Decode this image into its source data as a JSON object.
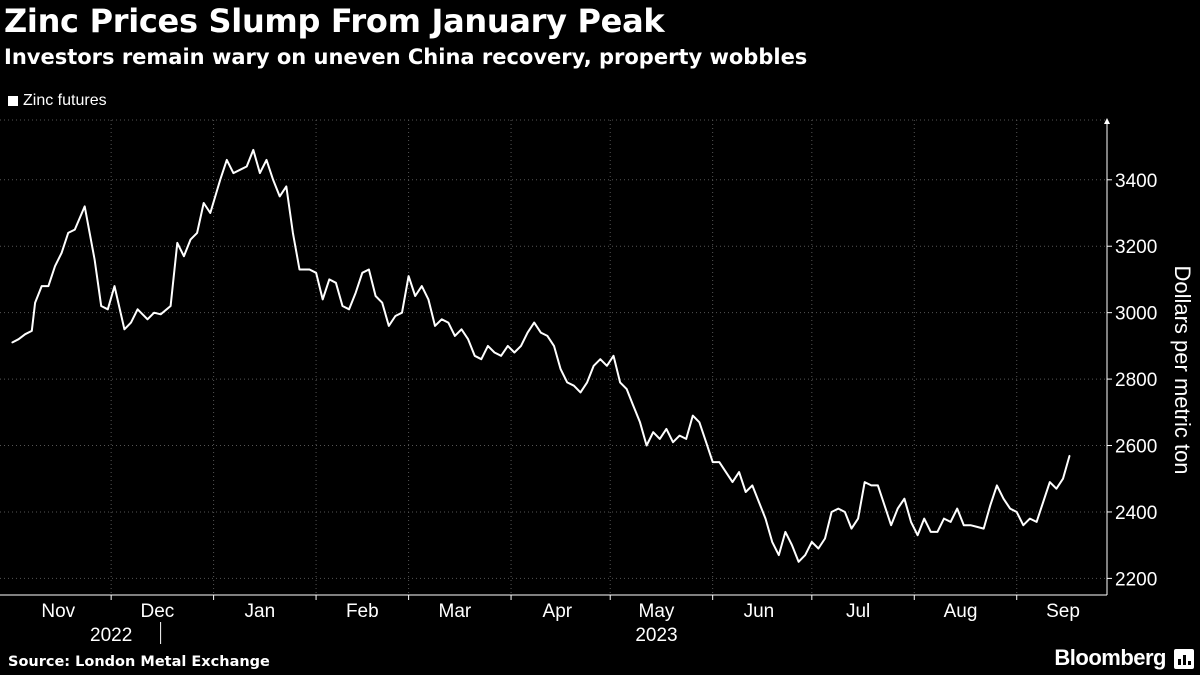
{
  "header": {
    "title": "Zinc Prices Slump From January Peak",
    "subtitle": "Investors remain wary on uneven China recovery, property wobbles"
  },
  "footer": {
    "source": "Source: London Metal Exchange",
    "brand": "Bloomberg"
  },
  "colors": {
    "background": "#000000",
    "line": "#ffffff",
    "grid": "#555555"
  },
  "chart_data": {
    "type": "line",
    "title": "Zinc Prices Slump From January Peak",
    "subtitle": "Investors remain wary on uneven China recovery, property wobbles",
    "ylabel": "Dollars per metric ton",
    "xlabel": "",
    "ylim": [
      2150,
      3580
    ],
    "y_ticks": [
      2200,
      2400,
      2600,
      2800,
      3000,
      3200,
      3400
    ],
    "y_axis_side": "right",
    "grid": true,
    "legend_position": "top-left",
    "x_range": [
      "2022-11-01",
      "2023-09-15"
    ],
    "x_ticks": [
      {
        "label": "Nov",
        "date": "2022-11-15"
      },
      {
        "label": "Dec",
        "date": "2022-12-15"
      },
      {
        "label": "Jan",
        "date": "2023-01-15"
      },
      {
        "label": "Feb",
        "date": "2023-02-15"
      },
      {
        "label": "Mar",
        "date": "2023-03-15"
      },
      {
        "label": "Apr",
        "date": "2023-04-15"
      },
      {
        "label": "May",
        "date": "2023-05-15"
      },
      {
        "label": "Jun",
        "date": "2023-06-15"
      },
      {
        "label": "Jul",
        "date": "2023-07-15"
      },
      {
        "label": "Aug",
        "date": "2023-08-15"
      },
      {
        "label": "Sep",
        "date": "2023-09-15"
      }
    ],
    "year_labels": [
      {
        "label": "2022",
        "date": "2022-12-01"
      },
      {
        "label": "2023",
        "date": "2023-05-15"
      }
    ],
    "series": [
      {
        "name": "Zinc futures",
        "points": [
          [
            "2022-11-01",
            2910
          ],
          [
            "2022-11-03",
            2920
          ],
          [
            "2022-11-05",
            2935
          ],
          [
            "2022-11-07",
            2945
          ],
          [
            "2022-11-08",
            3030
          ],
          [
            "2022-11-10",
            3080
          ],
          [
            "2022-11-12",
            3080
          ],
          [
            "2022-11-14",
            3140
          ],
          [
            "2022-11-16",
            3180
          ],
          [
            "2022-11-18",
            3240
          ],
          [
            "2022-11-20",
            3250
          ],
          [
            "2022-11-23",
            3320
          ],
          [
            "2022-11-26",
            3160
          ],
          [
            "2022-11-28",
            3020
          ],
          [
            "2022-11-30",
            3010
          ],
          [
            "2022-12-02",
            3080
          ],
          [
            "2022-12-05",
            2950
          ],
          [
            "2022-12-07",
            2970
          ],
          [
            "2022-12-09",
            3010
          ],
          [
            "2022-12-12",
            2980
          ],
          [
            "2022-12-14",
            3000
          ],
          [
            "2022-12-16",
            2995
          ],
          [
            "2022-12-19",
            3020
          ],
          [
            "2022-12-21",
            3210
          ],
          [
            "2022-12-23",
            3170
          ],
          [
            "2022-12-25",
            3220
          ],
          [
            "2022-12-27",
            3240
          ],
          [
            "2022-12-29",
            3330
          ],
          [
            "2022-12-31",
            3300
          ],
          [
            "2023-01-03",
            3400
          ],
          [
            "2023-01-05",
            3460
          ],
          [
            "2023-01-07",
            3420
          ],
          [
            "2023-01-09",
            3430
          ],
          [
            "2023-01-11",
            3440
          ],
          [
            "2023-01-13",
            3490
          ],
          [
            "2023-01-15",
            3420
          ],
          [
            "2023-01-17",
            3460
          ],
          [
            "2023-01-19",
            3400
          ],
          [
            "2023-01-21",
            3350
          ],
          [
            "2023-01-23",
            3380
          ],
          [
            "2023-01-25",
            3240
          ],
          [
            "2023-01-27",
            3130
          ],
          [
            "2023-01-30",
            3130
          ],
          [
            "2023-02-01",
            3120
          ],
          [
            "2023-02-03",
            3040
          ],
          [
            "2023-02-05",
            3100
          ],
          [
            "2023-02-07",
            3090
          ],
          [
            "2023-02-09",
            3020
          ],
          [
            "2023-02-11",
            3010
          ],
          [
            "2023-02-13",
            3060
          ],
          [
            "2023-02-15",
            3120
          ],
          [
            "2023-02-17",
            3130
          ],
          [
            "2023-02-19",
            3050
          ],
          [
            "2023-02-21",
            3030
          ],
          [
            "2023-02-23",
            2960
          ],
          [
            "2023-02-25",
            2990
          ],
          [
            "2023-02-27",
            3000
          ],
          [
            "2023-03-01",
            3110
          ],
          [
            "2023-03-03",
            3050
          ],
          [
            "2023-03-05",
            3080
          ],
          [
            "2023-03-07",
            3040
          ],
          [
            "2023-03-09",
            2960
          ],
          [
            "2023-03-11",
            2980
          ],
          [
            "2023-03-13",
            2970
          ],
          [
            "2023-03-15",
            2930
          ],
          [
            "2023-03-17",
            2950
          ],
          [
            "2023-03-19",
            2920
          ],
          [
            "2023-03-21",
            2870
          ],
          [
            "2023-03-23",
            2860
          ],
          [
            "2023-03-25",
            2900
          ],
          [
            "2023-03-27",
            2880
          ],
          [
            "2023-03-29",
            2870
          ],
          [
            "2023-03-31",
            2900
          ],
          [
            "2023-04-02",
            2880
          ],
          [
            "2023-04-04",
            2900
          ],
          [
            "2023-04-06",
            2940
          ],
          [
            "2023-04-08",
            2970
          ],
          [
            "2023-04-10",
            2940
          ],
          [
            "2023-04-12",
            2930
          ],
          [
            "2023-04-14",
            2900
          ],
          [
            "2023-04-16",
            2830
          ],
          [
            "2023-04-18",
            2790
          ],
          [
            "2023-04-20",
            2780
          ],
          [
            "2023-04-22",
            2760
          ],
          [
            "2023-04-24",
            2790
          ],
          [
            "2023-04-26",
            2840
          ],
          [
            "2023-04-28",
            2860
          ],
          [
            "2023-04-30",
            2840
          ],
          [
            "2023-05-02",
            2870
          ],
          [
            "2023-05-04",
            2790
          ],
          [
            "2023-05-06",
            2770
          ],
          [
            "2023-05-08",
            2720
          ],
          [
            "2023-05-10",
            2670
          ],
          [
            "2023-05-12",
            2600
          ],
          [
            "2023-05-14",
            2640
          ],
          [
            "2023-05-16",
            2620
          ],
          [
            "2023-05-18",
            2650
          ],
          [
            "2023-05-20",
            2610
          ],
          [
            "2023-05-22",
            2630
          ],
          [
            "2023-05-24",
            2620
          ],
          [
            "2023-05-26",
            2690
          ],
          [
            "2023-05-28",
            2670
          ],
          [
            "2023-05-30",
            2610
          ],
          [
            "2023-06-01",
            2550
          ],
          [
            "2023-06-03",
            2550
          ],
          [
            "2023-06-05",
            2520
          ],
          [
            "2023-06-07",
            2490
          ],
          [
            "2023-06-09",
            2520
          ],
          [
            "2023-06-11",
            2460
          ],
          [
            "2023-06-13",
            2480
          ],
          [
            "2023-06-15",
            2430
          ],
          [
            "2023-06-17",
            2380
          ],
          [
            "2023-06-19",
            2310
          ],
          [
            "2023-06-21",
            2270
          ],
          [
            "2023-06-23",
            2340
          ],
          [
            "2023-06-25",
            2300
          ],
          [
            "2023-06-27",
            2250
          ],
          [
            "2023-06-29",
            2270
          ],
          [
            "2023-07-01",
            2310
          ],
          [
            "2023-07-03",
            2290
          ],
          [
            "2023-07-05",
            2320
          ],
          [
            "2023-07-07",
            2400
          ],
          [
            "2023-07-09",
            2410
          ],
          [
            "2023-07-11",
            2400
          ],
          [
            "2023-07-13",
            2350
          ],
          [
            "2023-07-15",
            2380
          ],
          [
            "2023-07-17",
            2490
          ],
          [
            "2023-07-19",
            2480
          ],
          [
            "2023-07-21",
            2480
          ],
          [
            "2023-07-23",
            2420
          ],
          [
            "2023-07-25",
            2360
          ],
          [
            "2023-07-27",
            2410
          ],
          [
            "2023-07-29",
            2440
          ],
          [
            "2023-07-31",
            2370
          ],
          [
            "2023-08-02",
            2330
          ],
          [
            "2023-08-04",
            2380
          ],
          [
            "2023-08-06",
            2340
          ],
          [
            "2023-08-08",
            2340
          ],
          [
            "2023-08-10",
            2380
          ],
          [
            "2023-08-12",
            2370
          ],
          [
            "2023-08-14",
            2410
          ],
          [
            "2023-08-16",
            2360
          ],
          [
            "2023-08-18",
            2360
          ],
          [
            "2023-08-20",
            2355
          ],
          [
            "2023-08-22",
            2350
          ],
          [
            "2023-08-24",
            2420
          ],
          [
            "2023-08-26",
            2480
          ],
          [
            "2023-08-28",
            2440
          ],
          [
            "2023-08-30",
            2410
          ],
          [
            "2023-09-01",
            2400
          ],
          [
            "2023-09-03",
            2360
          ],
          [
            "2023-09-05",
            2380
          ],
          [
            "2023-09-07",
            2370
          ],
          [
            "2023-09-09",
            2430
          ],
          [
            "2023-09-11",
            2490
          ],
          [
            "2023-09-13",
            2470
          ],
          [
            "2023-09-15",
            2500
          ],
          [
            "2023-09-17",
            2570
          ]
        ]
      }
    ]
  }
}
